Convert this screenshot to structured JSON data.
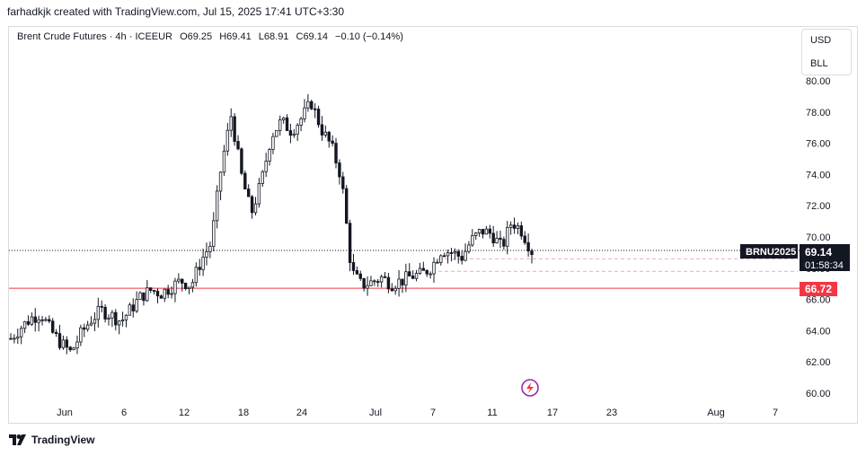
{
  "header": {
    "attribution": "farhadkjk created with TradingView.com, Jul 15, 2025 17:41 UTC+3:30"
  },
  "legend": {
    "symbol": "Brent Crude Futures · 4h · ICEEUR",
    "open": "O69.25",
    "high": "H69.41",
    "low": "L68.91",
    "close": "C69.14",
    "change": "−0.10 (−0.14%)"
  },
  "currency": {
    "unit": "USD",
    "barrel": "BLL"
  },
  "price_label": {
    "ticker": "BRNU2025",
    "price": "69.14",
    "countdown": "01:58:34"
  },
  "support_label": "66.72",
  "footer": {
    "brand": "TradingView"
  },
  "colors": {
    "up": "#131722",
    "line_red": "#f23645",
    "dash": "#e8a9c4",
    "label_bg": "#131722",
    "accent": "#9c27b0"
  },
  "chart_data": {
    "type": "candlestick",
    "timeframe": "4h",
    "ylim": [
      59,
      83
    ],
    "yticks": [
      "60.00",
      "62.00",
      "64.00",
      "66.00",
      "68.00",
      "70.00",
      "72.00",
      "74.00",
      "76.00",
      "78.00",
      "80.00"
    ],
    "xticks": [
      "Jun",
      "6",
      "12",
      "18",
      "24",
      "Jul",
      "7",
      "11",
      "17",
      "23",
      "Aug",
      "7"
    ],
    "current_price": 69.14,
    "support_level": 66.72,
    "approx_closes": [
      63.5,
      64.2,
      64.8,
      65.1,
      64.0,
      63.2,
      62.6,
      63.8,
      64.7,
      65.3,
      65.0,
      64.6,
      65.4,
      66.2,
      66.6,
      66.4,
      66.8,
      67.2,
      66.9,
      68.5,
      69.6,
      74.5,
      77.8,
      74.0,
      71.5,
      73.5,
      76.5,
      77.4,
      76.8,
      77.6,
      78.6,
      76.9,
      75.8,
      73.8,
      67.8,
      66.9,
      67.1,
      67.4,
      67.0,
      67.2,
      67.5,
      67.6,
      68.1,
      69.2,
      69.0,
      68.7,
      69.8,
      70.4,
      70.2,
      69.3,
      71.0,
      70.4,
      69.1
    ]
  }
}
